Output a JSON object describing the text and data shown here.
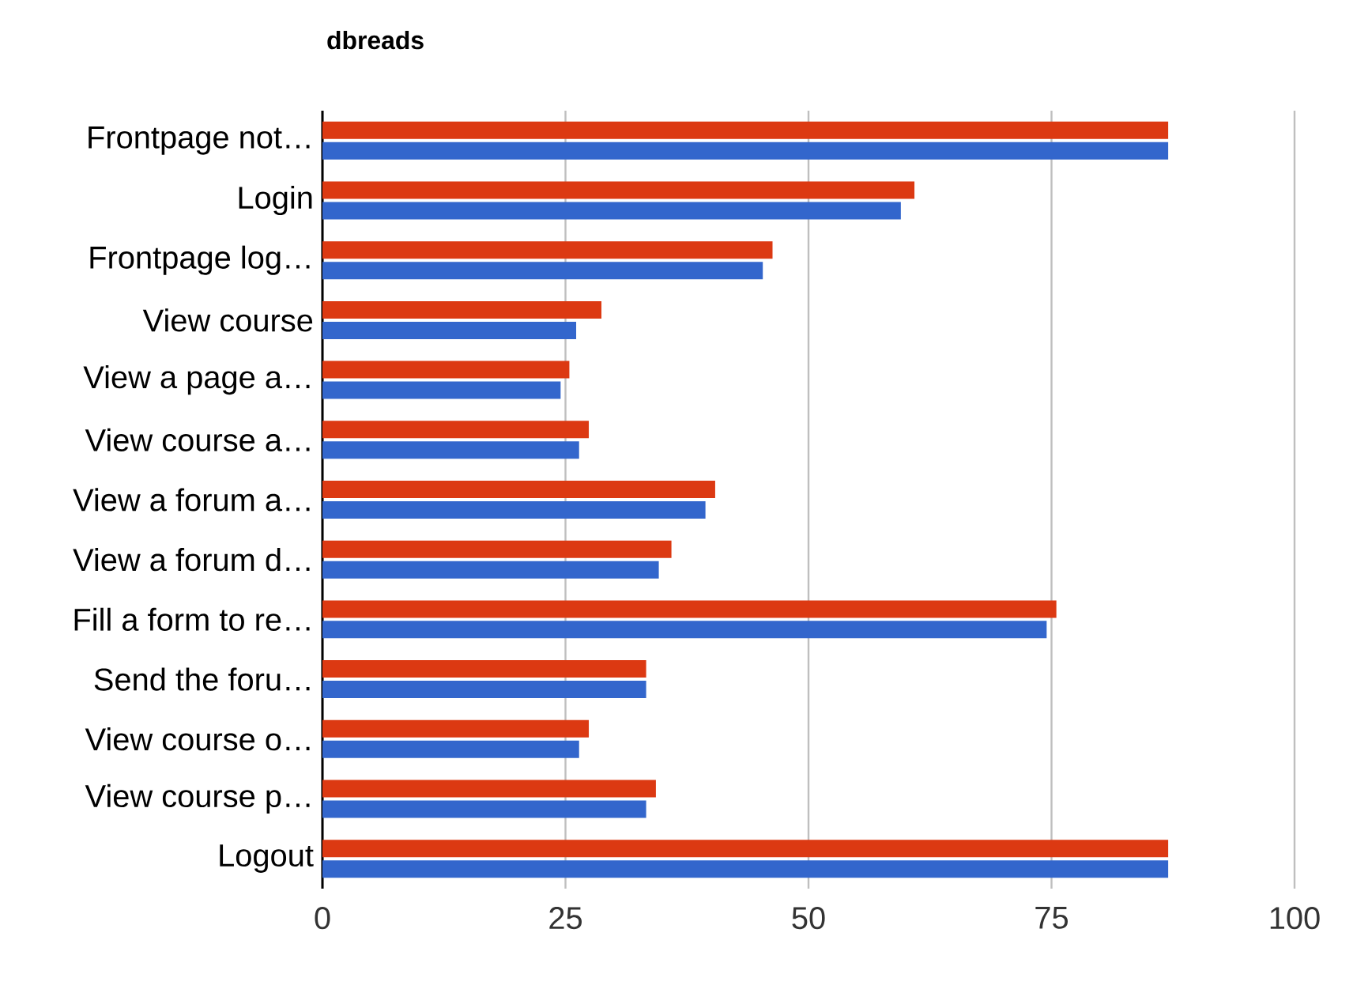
{
  "chart_data": {
    "type": "bar",
    "orientation": "horizontal",
    "title": "dbreads",
    "categories": [
      "Frontpage not…",
      "Login",
      "Frontpage log…",
      "View course",
      "View a page a…",
      "View course a…",
      "View a forum a…",
      "View a forum d…",
      "Fill a form to re…",
      "Send the foru…",
      "View course o…",
      "View course p…",
      "Logout"
    ],
    "series": [
      {
        "color": "#3366cc",
        "values": [
          87,
          59.5,
          45.3,
          26.1,
          24.5,
          26.4,
          39.4,
          34.6,
          74.5,
          33.3,
          26.4,
          33.3,
          87
        ]
      },
      {
        "color": "#dc3912",
        "values": [
          87,
          60.9,
          46.3,
          28.7,
          25.4,
          27.4,
          40.4,
          35.9,
          75.5,
          33.3,
          27.4,
          34.3,
          87
        ]
      }
    ],
    "xlim": [
      0,
      100
    ],
    "xticks": [
      0,
      25,
      50,
      75,
      100
    ],
    "grid": "x"
  }
}
